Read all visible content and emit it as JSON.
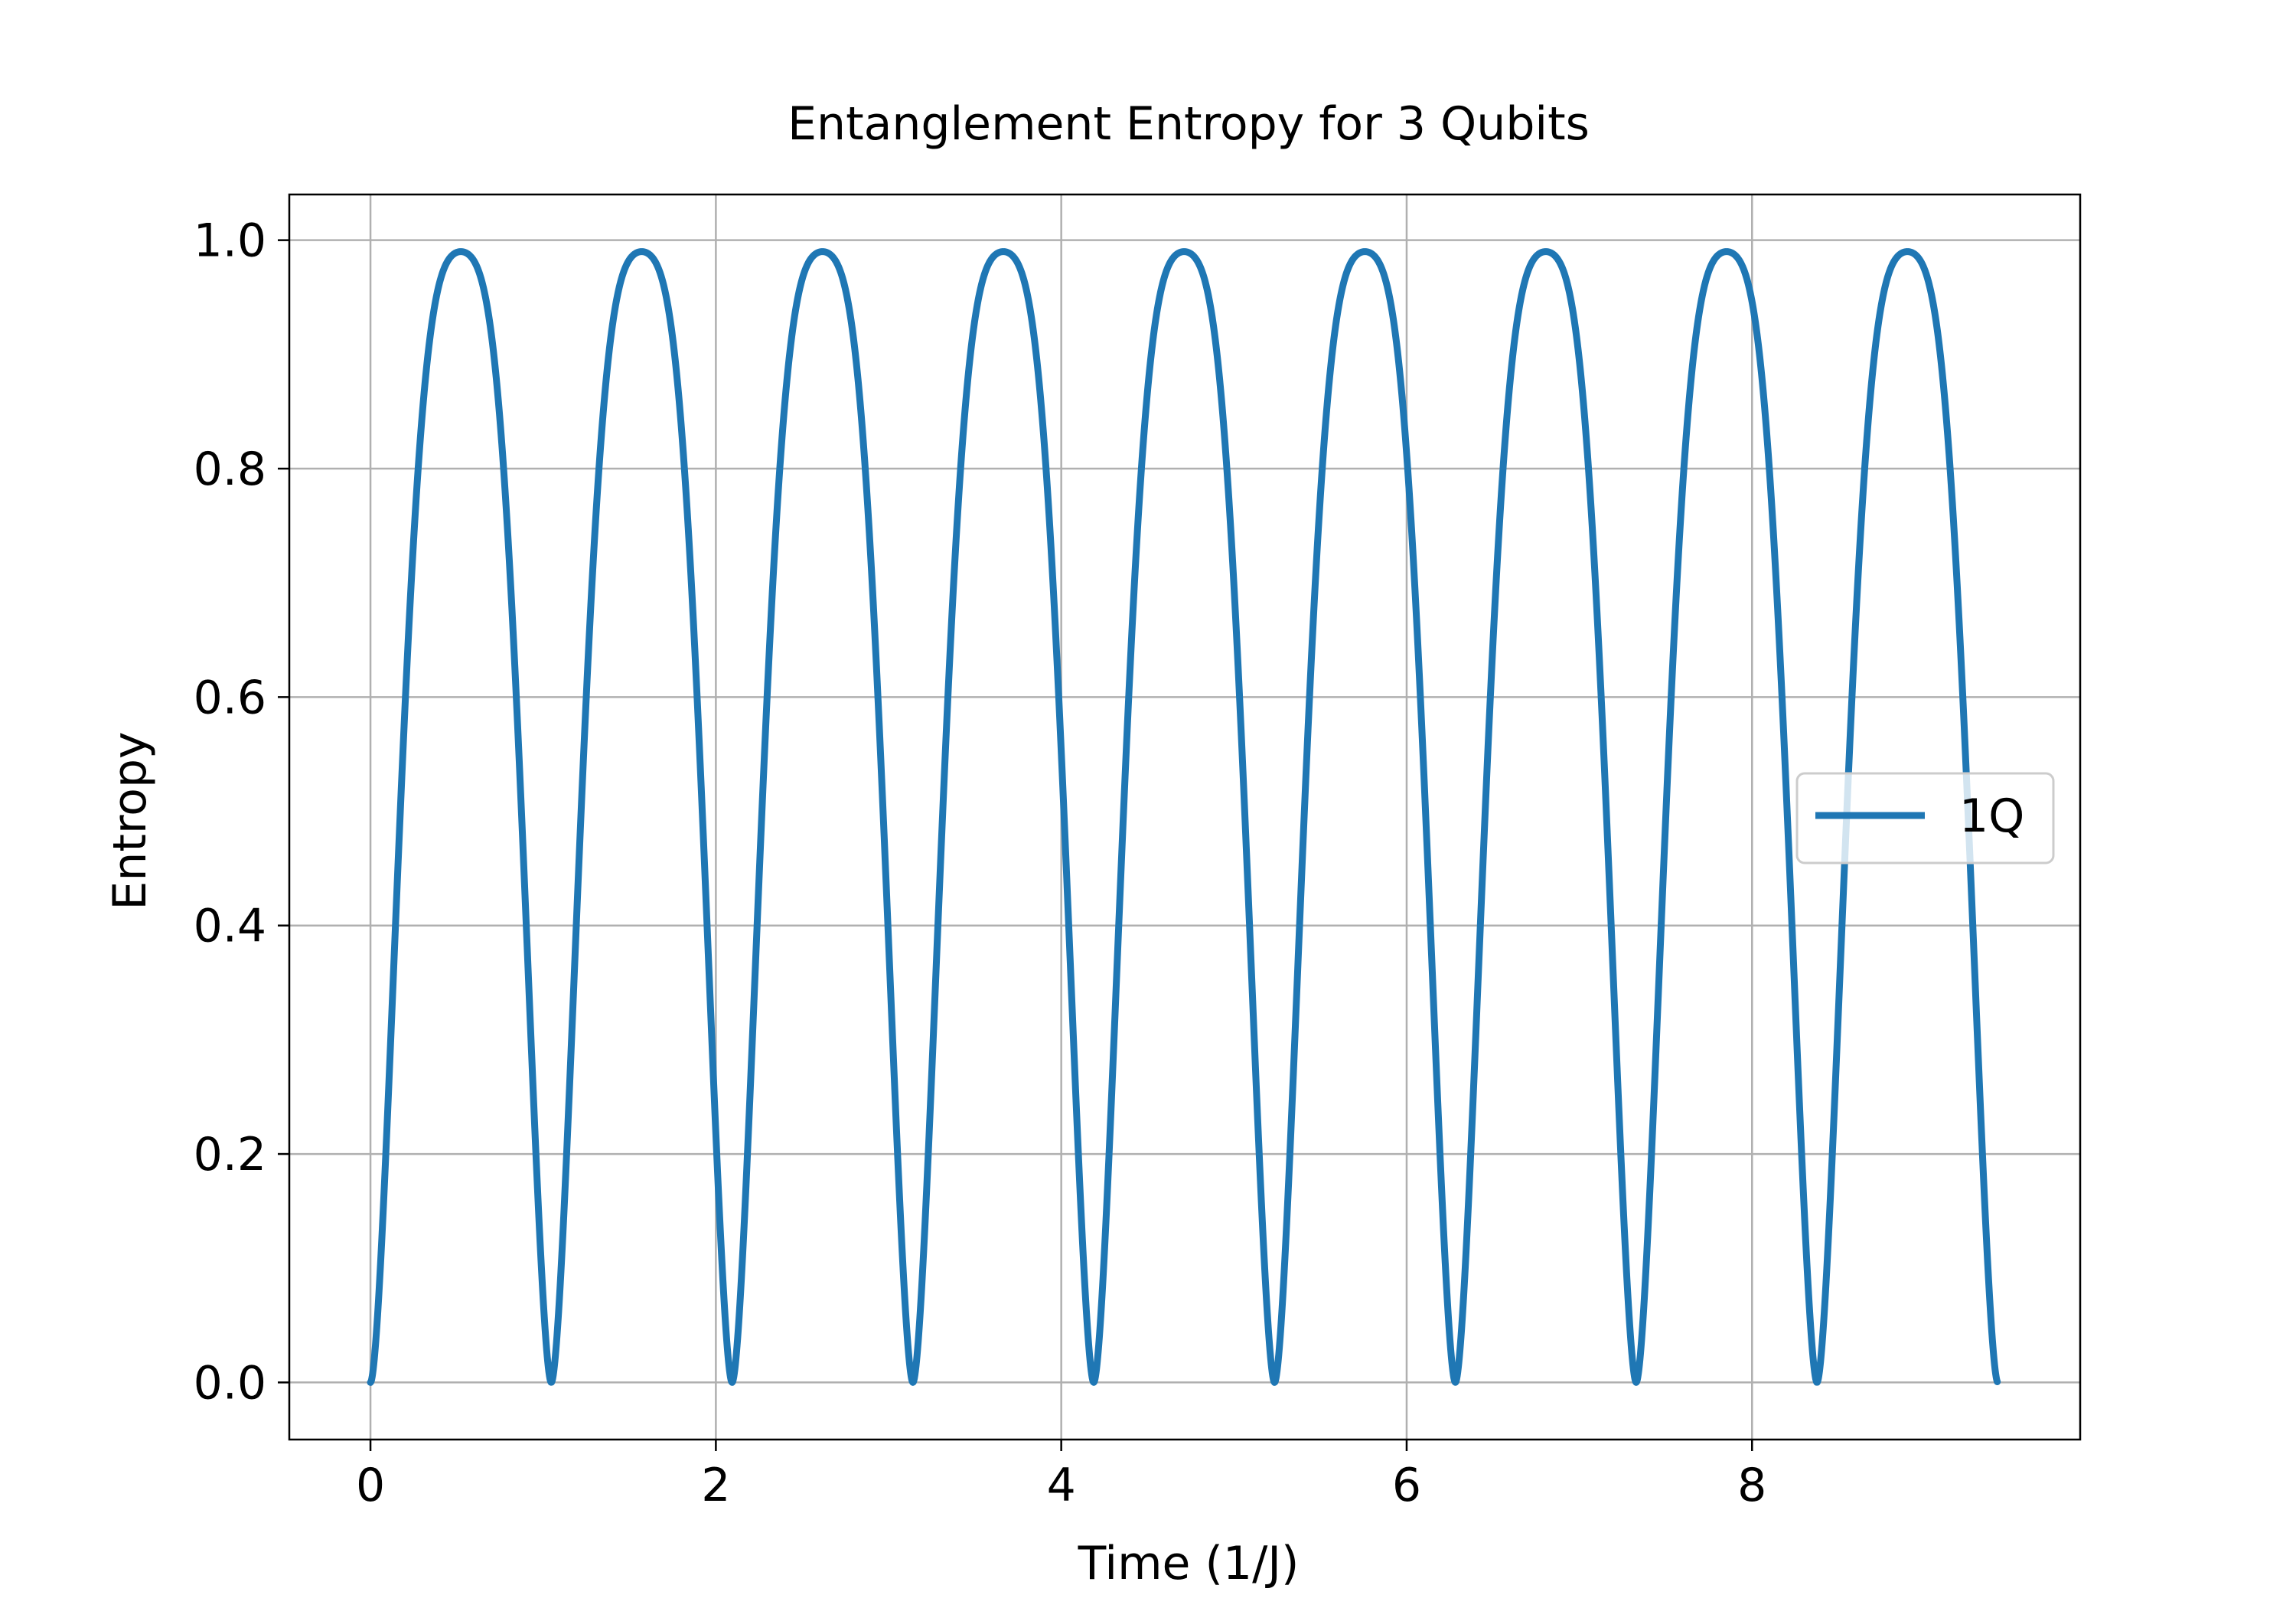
{
  "chart_data": {
    "type": "line",
    "title": "Entanglement Entropy for 3 Qubits",
    "xlabel": "Time (1/J)",
    "ylabel": "Entropy",
    "xlim": [
      -0.47,
      9.9
    ],
    "ylim": [
      -0.05,
      1.04
    ],
    "x_ticks": [
      0,
      2,
      4,
      6,
      8
    ],
    "y_ticks": [
      0.0,
      0.2,
      0.4,
      0.6,
      0.8,
      1.0
    ],
    "x_tick_labels": [
      "0",
      "2",
      "4",
      "6",
      "8"
    ],
    "y_tick_labels": [
      "0.0",
      "0.2",
      "0.4",
      "0.6",
      "0.8",
      "1.0"
    ],
    "grid": true,
    "legend_position": "center-right",
    "series": [
      {
        "name": "1Q",
        "color": "#1f77b4",
        "x_start": 0,
        "x_end": 9.42,
        "period": 1.047,
        "peak": 0.99,
        "minimum": 0.0
      }
    ]
  }
}
